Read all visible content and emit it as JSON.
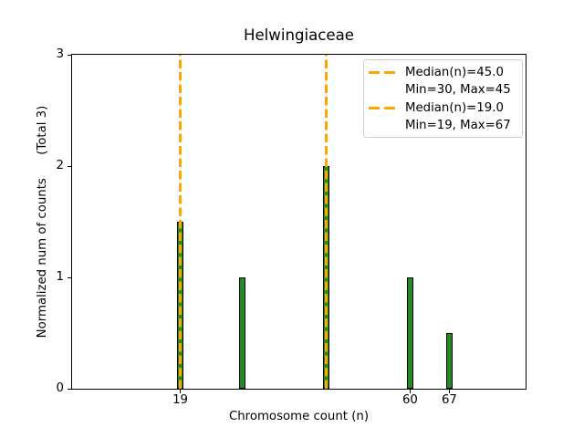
{
  "figure": {
    "title": "Helwingiaceae",
    "xlabel": "Chromosome count (n)",
    "ylabel": "Normalized num of counts      (Total 3)"
  },
  "chart_data": {
    "type": "bar",
    "title": "Helwingiaceae",
    "xlabel": "Chromosome count (n)",
    "ylabel": "Normalized num of counts (Total 3)",
    "total_counts": 3,
    "bars": [
      {
        "x": 19,
        "height": 1.5
      },
      {
        "x": 30,
        "height": 1.0
      },
      {
        "x": 45,
        "height": 2.0
      },
      {
        "x": 60,
        "height": 1.0
      },
      {
        "x": 67,
        "height": 0.5
      }
    ],
    "median_lines": [
      {
        "x": 45,
        "label": "Median(n)=45.0"
      },
      {
        "x": 19,
        "label": "Median(n)=19.0"
      }
    ],
    "xticks": [
      19,
      60,
      67
    ],
    "yticks": [
      0,
      1,
      2,
      3
    ],
    "xlim": [
      -0.3,
      80.6
    ],
    "ylim": [
      0,
      3
    ],
    "grid": false,
    "legend_position": "upper right",
    "colors": {
      "bar_fill": "#228B22",
      "bar_edge": "#000000",
      "median_line": "#FFA500",
      "legend_border": "#cccccc"
    }
  },
  "legend": {
    "entries": [
      {
        "sample": "dashed-orange",
        "label": "Median(n)=45.0"
      },
      {
        "sample": "none",
        "label": "Min=30, Max=45"
      },
      {
        "sample": "dashed-orange",
        "label": "Median(n)=19.0"
      },
      {
        "sample": "none",
        "label": "Min=19, Max=67"
      }
    ]
  }
}
